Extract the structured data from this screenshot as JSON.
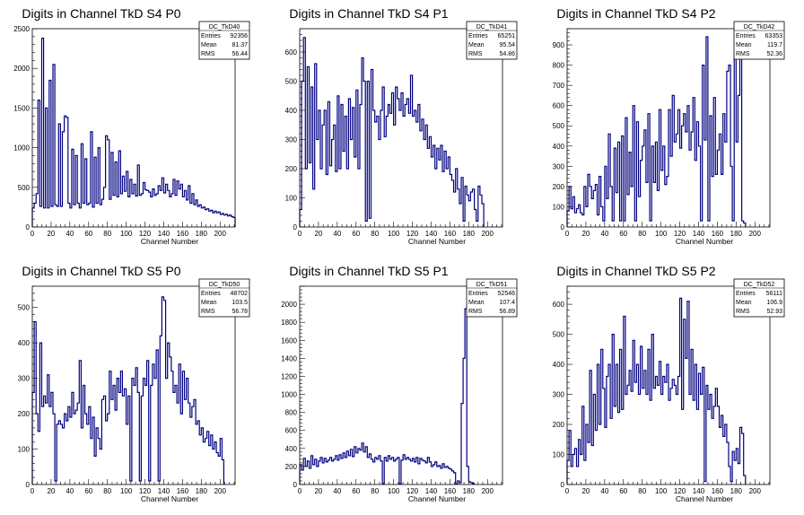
{
  "chart_data": [
    {
      "type": "histogram",
      "title": "Digits in Channel TkD S4 P0",
      "xlabel": "Channel Number",
      "xlim": [
        0,
        216
      ],
      "ylim": [
        0,
        2500
      ],
      "xticks": [
        0,
        20,
        40,
        60,
        80,
        100,
        120,
        140,
        160,
        180,
        200
      ],
      "yticks": [
        0,
        500,
        1000,
        1500,
        2000,
        2500
      ],
      "stats": {
        "name": "DC_TkD40",
        "rows": [
          [
            "Entries",
            "92356"
          ],
          [
            "Mean",
            "81.37"
          ],
          [
            "RMS",
            "56.44"
          ]
        ]
      },
      "bins": {
        "start": 0,
        "width": 2,
        "values": [
          240,
          300,
          420,
          1600,
          260,
          2380,
          240,
          1500,
          240,
          1850,
          260,
          2050,
          280,
          260,
          1300,
          260,
          1200,
          1400,
          1380,
          300,
          240,
          980,
          280,
          900,
          300,
          240,
          1050,
          300,
          860,
          280,
          300,
          1200,
          250,
          880,
          300,
          1000,
          280,
          350,
          500,
          1150,
          1100,
          350,
          940,
          400,
          820,
          380,
          960,
          420,
          640,
          450,
          700,
          380,
          600,
          420,
          540,
          390,
          780,
          400,
          420,
          560,
          470,
          460,
          440,
          380,
          480,
          400,
          420,
          520,
          460,
          620,
          430,
          540,
          460,
          380,
          420,
          600,
          400,
          580,
          480,
          540,
          380,
          460,
          340,
          520,
          300,
          420,
          280,
          340,
          260,
          280,
          240,
          250,
          220,
          230,
          200,
          210,
          180,
          200,
          180,
          190,
          160,
          170,
          150,
          160,
          140,
          150,
          130,
          120
        ]
      }
    },
    {
      "type": "histogram",
      "title": "Digits in Channel TkD S4 P1",
      "xlabel": "Channel Number",
      "xlim": [
        0,
        216
      ],
      "ylim": [
        0,
        680
      ],
      "xticks": [
        0,
        20,
        40,
        60,
        80,
        100,
        120,
        140,
        160,
        180,
        200
      ],
      "yticks": [
        0,
        100,
        200,
        300,
        400,
        500,
        600
      ],
      "stats": {
        "name": "DC_TkD41",
        "rows": [
          [
            "Entries",
            "65251"
          ],
          [
            "Mean",
            "95.54"
          ],
          [
            "RMS",
            "54.86"
          ]
        ]
      },
      "bins": {
        "start": 0,
        "width": 2,
        "values": [
          60,
          500,
          650,
          200,
          550,
          220,
          480,
          130,
          560,
          300,
          400,
          200,
          350,
          400,
          180,
          430,
          210,
          300,
          350,
          190,
          450,
          200,
          420,
          260,
          380,
          200,
          440,
          300,
          410,
          240,
          470,
          200,
          420,
          580,
          500,
          20,
          500,
          30,
          540,
          400,
          360,
          380,
          300,
          400,
          480,
          310,
          380,
          420,
          390,
          460,
          350,
          480,
          440,
          400,
          460,
          380,
          420,
          440,
          390,
          520,
          380,
          400,
          360,
          420,
          330,
          370,
          300,
          350,
          270,
          310,
          240,
          280,
          200,
          270,
          230,
          280,
          190,
          260,
          200,
          240,
          180,
          160,
          120,
          200,
          130,
          80,
          170,
          20,
          140,
          110,
          90,
          120,
          130,
          60,
          20,
          140,
          110,
          80
        ]
      }
    },
    {
      "type": "histogram",
      "title": "Digits in Channel TkD S4 P2",
      "xlabel": "Channel Number",
      "xlim": [
        0,
        216
      ],
      "ylim": [
        0,
        980
      ],
      "xticks": [
        0,
        20,
        40,
        60,
        80,
        100,
        120,
        140,
        160,
        180,
        200
      ],
      "yticks": [
        0,
        100,
        200,
        300,
        400,
        500,
        600,
        700,
        800,
        900
      ],
      "stats": {
        "name": "DC_TkD42",
        "rows": [
          [
            "Entries",
            "63353"
          ],
          [
            "Mean",
            "119.7"
          ],
          [
            "RMS",
            "52.36"
          ]
        ]
      },
      "bins": {
        "start": 0,
        "width": 2,
        "values": [
          80,
          200,
          90,
          150,
          70,
          90,
          110,
          70,
          60,
          200,
          100,
          260,
          200,
          140,
          180,
          210,
          60,
          250,
          100,
          30,
          300,
          140,
          460,
          200,
          30,
          390,
          170,
          420,
          30,
          450,
          30,
          540,
          160,
          370,
          200,
          600,
          30,
          520,
          150,
          330,
          400,
          480,
          220,
          560,
          30,
          400,
          220,
          420,
          180,
          580,
          280,
          400,
          210,
          250,
          580,
          350,
          650,
          420,
          460,
          580,
          390,
          500,
          560,
          470,
          600,
          380,
          470,
          640,
          330,
          520,
          400,
          30,
          800,
          430,
          940,
          30,
          550,
          250,
          640,
          260,
          380,
          460,
          260,
          560,
          420,
          770,
          800,
          300,
          30,
          860,
          420,
          650,
          860,
          30,
          20
        ]
      }
    },
    {
      "type": "histogram",
      "title": "Digits in Channel TkD S5 P0",
      "xlabel": "Channel Number",
      "xlim": [
        0,
        216
      ],
      "ylim": [
        0,
        560
      ],
      "xticks": [
        0,
        20,
        40,
        60,
        80,
        100,
        120,
        140,
        160,
        180,
        200
      ],
      "yticks": [
        0,
        100,
        200,
        300,
        400,
        500
      ],
      "stats": {
        "name": "DC_TkD50",
        "rows": [
          [
            "Entries",
            "48702"
          ],
          [
            "Mean",
            "103.5"
          ],
          [
            "RMS",
            "56.78"
          ]
        ]
      },
      "bins": {
        "start": 0,
        "width": 2,
        "values": [
          260,
          460,
          200,
          150,
          400,
          220,
          250,
          230,
          310,
          220,
          260,
          200,
          10,
          170,
          180,
          170,
          160,
          200,
          180,
          220,
          190,
          260,
          200,
          210,
          230,
          350,
          160,
          280,
          200,
          170,
          220,
          130,
          190,
          80,
          160,
          130,
          100,
          240,
          250,
          180,
          200,
          320,
          240,
          280,
          210,
          300,
          260,
          320,
          250,
          270,
          170,
          250,
          10,
          300,
          280,
          330,
          260,
          10,
          250,
          300,
          280,
          350,
          10,
          280,
          340,
          300,
          380,
          10,
          420,
          530,
          520,
          300,
          400,
          360,
          320,
          260,
          280,
          230,
          340,
          200,
          320,
          240,
          300,
          230,
          190,
          220,
          240,
          170,
          180,
          140,
          160,
          120,
          130,
          150,
          110,
          140,
          100,
          120,
          90,
          80,
          130,
          70
        ]
      }
    },
    {
      "type": "histogram",
      "title": "Digits in Channel TkD S5 P1",
      "xlabel": "Channel Number",
      "xlim": [
        0,
        216
      ],
      "ylim": [
        0,
        2200
      ],
      "xticks": [
        0,
        20,
        40,
        60,
        80,
        100,
        120,
        140,
        160,
        180,
        200
      ],
      "yticks": [
        0,
        200,
        400,
        600,
        800,
        1000,
        1200,
        1400,
        1600,
        1800,
        2000
      ],
      "stats": {
        "name": "DC_TkD51",
        "rows": [
          [
            "Entries",
            "52546"
          ],
          [
            "Mean",
            "107.4"
          ],
          [
            "RMS",
            "56.89"
          ]
        ]
      },
      "bins": {
        "start": 0,
        "width": 2,
        "values": [
          220,
          160,
          290,
          200,
          260,
          180,
          320,
          220,
          280,
          200,
          260,
          300,
          240,
          290,
          250,
          270,
          300,
          260,
          280,
          320,
          270,
          330,
          290,
          350,
          300,
          370,
          320,
          390,
          310,
          420,
          350,
          400,
          380,
          460,
          360,
          420,
          300,
          340,
          280,
          250,
          300,
          280,
          320,
          260,
          10,
          300,
          260,
          320,
          280,
          300,
          260,
          280,
          300,
          10,
          270,
          330,
          280,
          300,
          280,
          260,
          290,
          250,
          300,
          230,
          290,
          270,
          260,
          240,
          300,
          250,
          200,
          220,
          250,
          200,
          210,
          180,
          230,
          190,
          200,
          180,
          170,
          150,
          130,
          10,
          40,
          20,
          900,
          1400,
          1950,
          200,
          30,
          20,
          10
        ]
      }
    },
    {
      "type": "histogram",
      "title": "Digits in Channel TkD S5 P2",
      "xlabel": "Channel Number",
      "xlim": [
        0,
        216
      ],
      "ylim": [
        0,
        660
      ],
      "xticks": [
        0,
        20,
        40,
        60,
        80,
        100,
        120,
        140,
        160,
        180,
        200
      ],
      "yticks": [
        0,
        100,
        200,
        300,
        400,
        500,
        600
      ],
      "stats": {
        "name": "DC_TkD52",
        "rows": [
          [
            "Entries",
            "56111"
          ],
          [
            "Mean",
            "106.9"
          ],
          [
            "RMS",
            "52.93"
          ]
        ]
      },
      "bins": {
        "start": 0,
        "width": 2,
        "values": [
          80,
          180,
          60,
          100,
          120,
          60,
          150,
          100,
          260,
          80,
          200,
          140,
          380,
          130,
          300,
          180,
          400,
          200,
          450,
          320,
          190,
          360,
          400,
          220,
          500,
          260,
          400,
          240,
          450,
          250,
          560,
          300,
          330,
          380,
          310,
          480,
          340,
          400,
          300,
          460,
          320,
          380,
          300,
          450,
          280,
          500,
          320,
          360,
          330,
          410,
          300,
          360,
          340,
          400,
          280,
          320,
          350,
          330,
          300,
          360,
          620,
          250,
          550,
          420,
          610,
          300,
          450,
          280,
          400,
          250,
          370,
          300,
          390,
          10,
          330,
          250,
          300,
          220,
          260,
          320,
          260,
          190,
          230,
          160,
          200,
          140,
          60,
          10,
          110,
          80,
          120,
          70,
          190,
          170,
          30
        ]
      }
    }
  ]
}
